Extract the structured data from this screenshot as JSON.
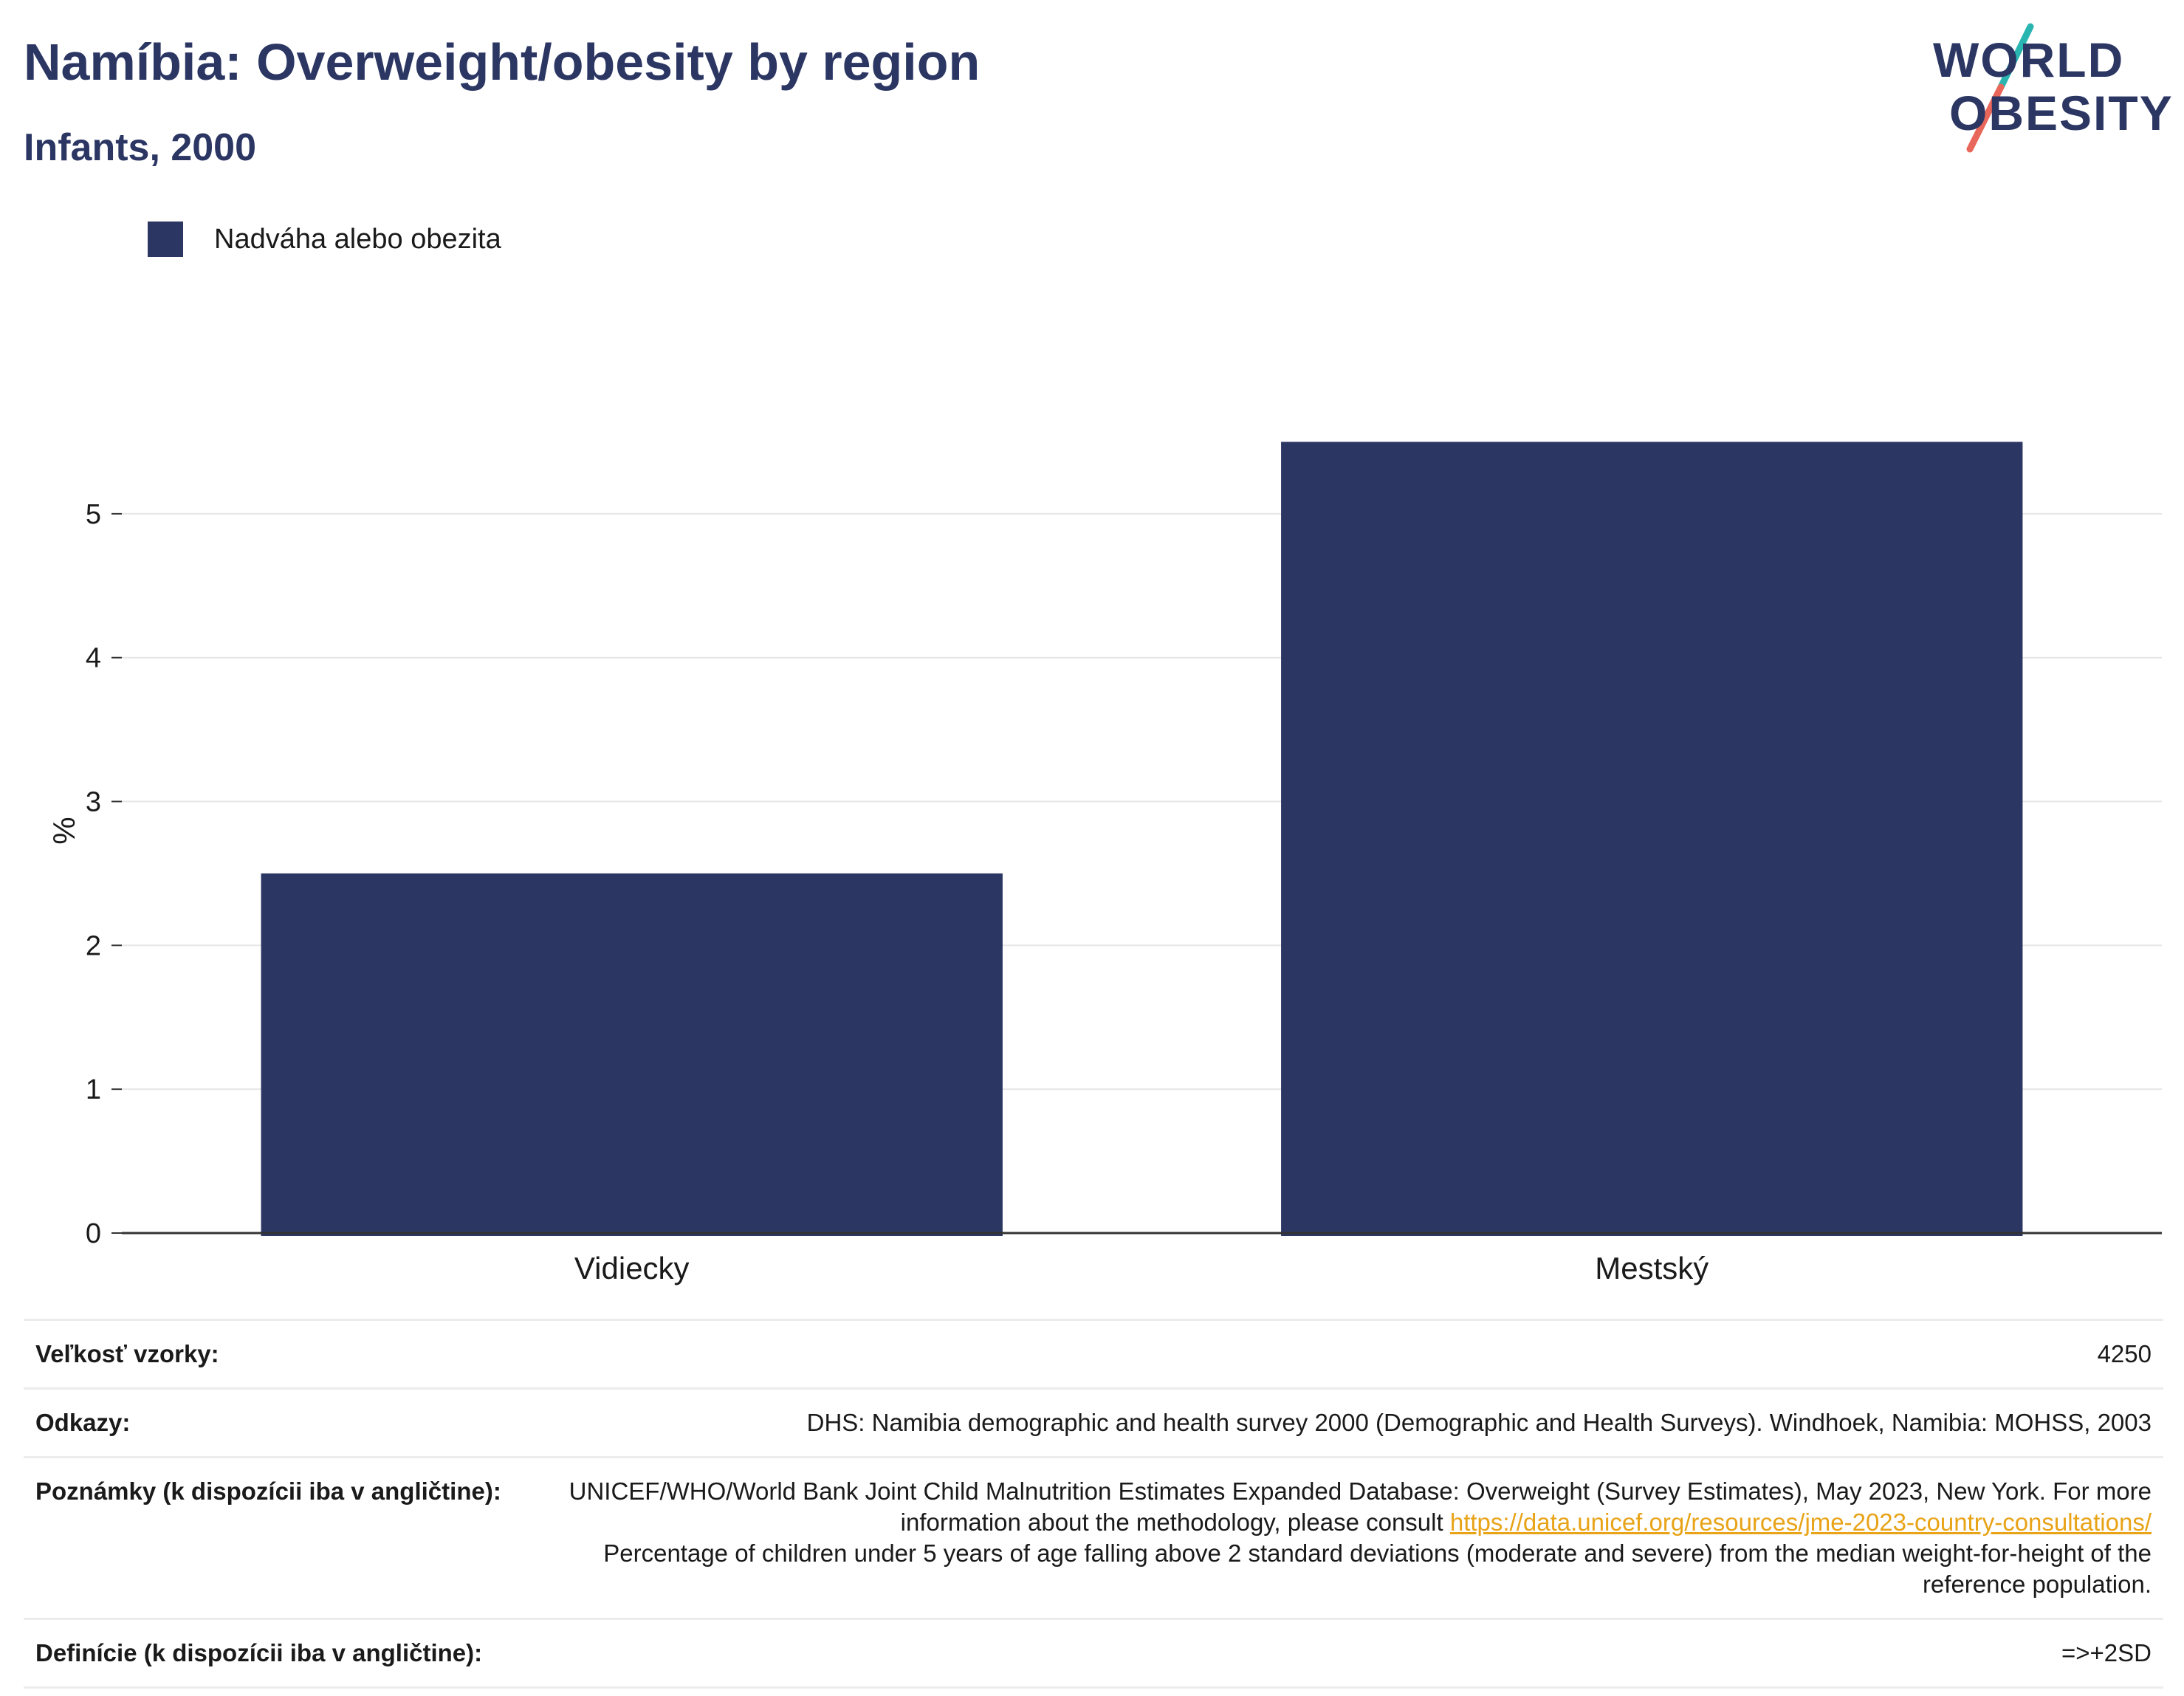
{
  "header": {
    "title": "Namíbia: Overweight/obesity by region",
    "subtitle": "Infants, 2000"
  },
  "logo": {
    "line1": "WORLD",
    "line2": "OBESITY",
    "colors": {
      "text": "#2b3663",
      "slash_top": "#2bb5b1",
      "slash_bottom": "#e8675a"
    }
  },
  "chart_data": {
    "type": "bar",
    "categories": [
      "Vidiecky",
      "Mestský"
    ],
    "series": [
      {
        "name": "Nadváha alebo obezita",
        "values": [
          2.5,
          5.5
        ],
        "color": "#2b3663"
      }
    ],
    "ylabel": "%",
    "xlabel": "",
    "ylim": [
      0,
      5.8
    ],
    "yticks": [
      0,
      1,
      2,
      3,
      4,
      5
    ],
    "grid": true,
    "legend_position": "top-left"
  },
  "meta": {
    "rows": [
      {
        "key": "Veľkosť vzorky:",
        "value": "4250"
      },
      {
        "key": "Odkazy:",
        "value": "DHS: Namibia demographic and health survey 2000 (Demographic and Health Surveys). Windhoek, Namibia: MOHSS, 2003"
      },
      {
        "key": "Poznámky (k dispozícii iba v angličtine):",
        "value_before_link": "UNICEF/WHO/World Bank Joint Child Malnutrition Estimates Expanded Database: Overweight (Survey Estimates), May 2023, New York. For more information about the methodology, please consult ",
        "link": "https://data.unicef.org/resources/jme-2023-country-consultations/",
        "value_after_link": "Percentage of children under 5 years of age falling above 2 standard deviations (moderate and severe) from the median weight-for-height of the reference population."
      },
      {
        "key": "Definície (k dispozícii iba v angličtine):",
        "value": "=>+2SD"
      }
    ]
  }
}
